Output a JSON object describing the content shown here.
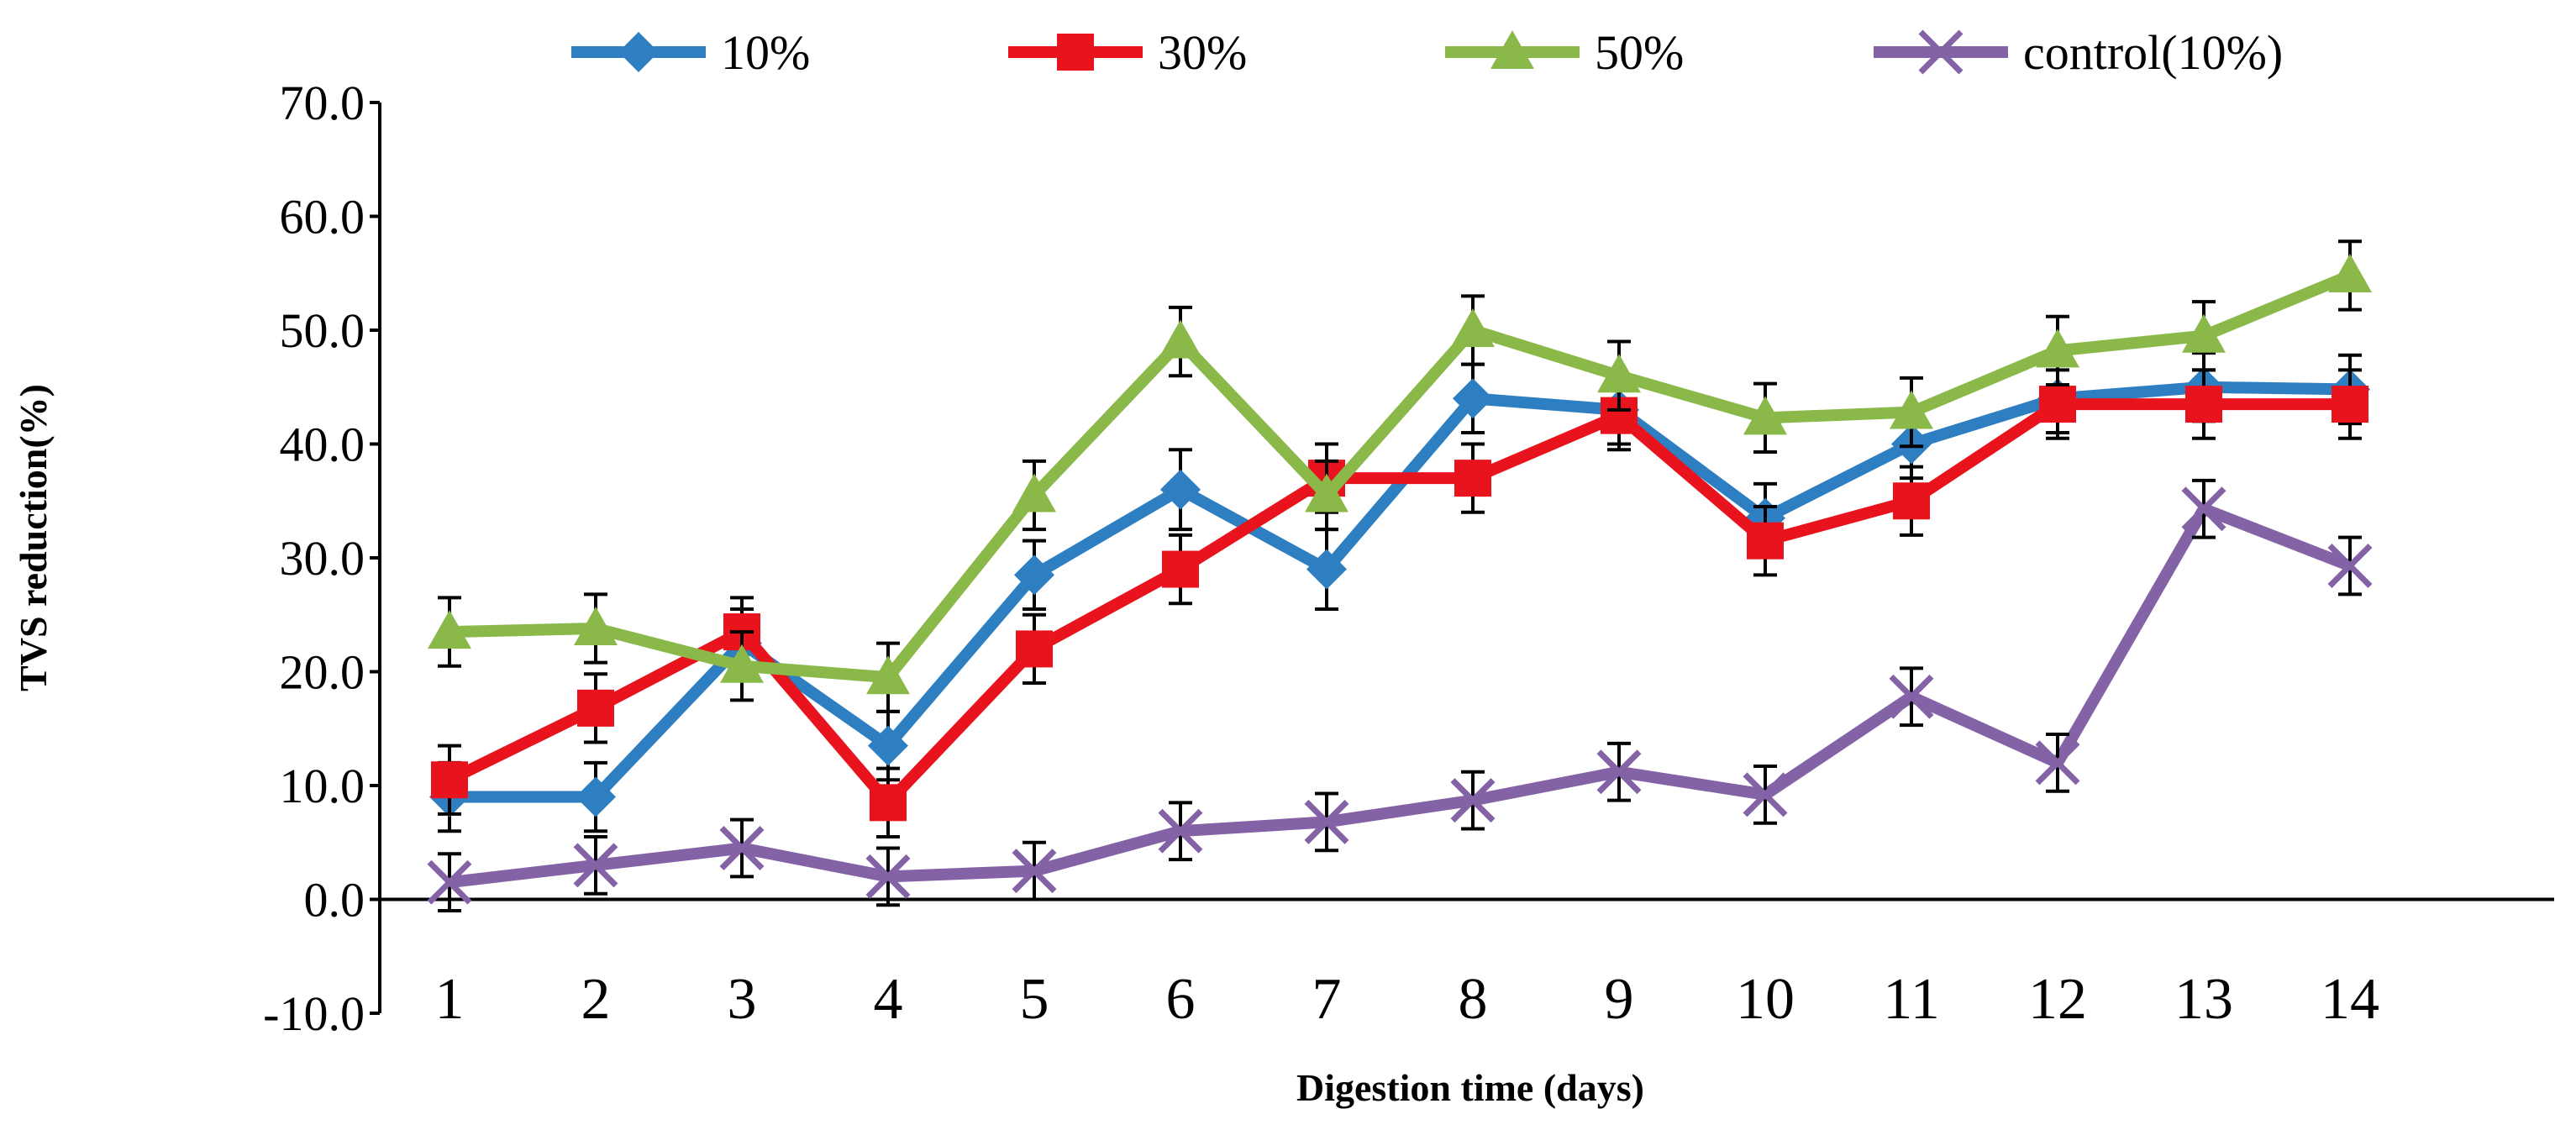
{
  "chart_data": {
    "type": "line",
    "title": "",
    "xlabel": "Digestion time (days)",
    "ylabel": "TVS reduction(%)",
    "ylim": [
      -10,
      70
    ],
    "yticks": [
      -10,
      0,
      10,
      20,
      30,
      40,
      50,
      60,
      70
    ],
    "ytick_labels": [
      "-10.0",
      "0.0",
      "10.0",
      "20.0",
      "30.0",
      "40.0",
      "50.0",
      "60.0",
      "70.0"
    ],
    "categories": [
      "1",
      "2",
      "3",
      "4",
      "5",
      "6",
      "7",
      "8",
      "9",
      "10",
      "11",
      "12",
      "13",
      "14"
    ],
    "grid": false,
    "legend_position": "top",
    "series": [
      {
        "name": "10%",
        "color": "#2E7EC2",
        "marker": "diamond",
        "values": [
          9.0,
          9.0,
          22.5,
          13.5,
          28.5,
          36.0,
          29.0,
          44.0,
          43.0,
          33.5,
          40.0,
          44.0,
          45.0,
          44.8
        ],
        "errors": [
          3.0,
          3.0,
          3.0,
          3.0,
          3.0,
          3.5,
          3.5,
          3.0,
          3.0,
          3.0,
          3.0,
          3.0,
          3.0,
          3.0
        ]
      },
      {
        "name": "30%",
        "color": "#E8131C",
        "marker": "square",
        "values": [
          10.5,
          16.8,
          23.5,
          8.5,
          22.0,
          29.0,
          37.0,
          37.0,
          42.5,
          31.5,
          35.0,
          43.5,
          43.5,
          43.5
        ],
        "errors": [
          3.0,
          3.0,
          3.0,
          3.0,
          3.0,
          3.0,
          3.0,
          3.0,
          3.0,
          3.0,
          3.0,
          3.0,
          3.0,
          3.0
        ]
      },
      {
        "name": "50%",
        "color": "#8AB94A",
        "marker": "triangle",
        "values": [
          23.5,
          23.8,
          20.5,
          19.5,
          35.5,
          49.0,
          35.5,
          50.0,
          46.0,
          42.3,
          42.8,
          48.2,
          49.5,
          54.8
        ],
        "errors": [
          3.0,
          3.0,
          3.0,
          3.0,
          3.0,
          3.0,
          3.0,
          3.0,
          3.0,
          3.0,
          3.0,
          3.0,
          3.0,
          3.0
        ]
      },
      {
        "name": "control(10%)",
        "color": "#8462A6",
        "marker": "x",
        "values": [
          1.5,
          3.0,
          4.5,
          2.0,
          2.5,
          6.0,
          6.8,
          8.7,
          11.2,
          9.2,
          17.8,
          12.0,
          34.3,
          29.3
        ],
        "errors": [
          2.5,
          2.5,
          2.5,
          2.5,
          2.5,
          2.5,
          2.5,
          2.5,
          2.5,
          2.5,
          2.5,
          2.5,
          2.5,
          2.5
        ]
      }
    ]
  }
}
